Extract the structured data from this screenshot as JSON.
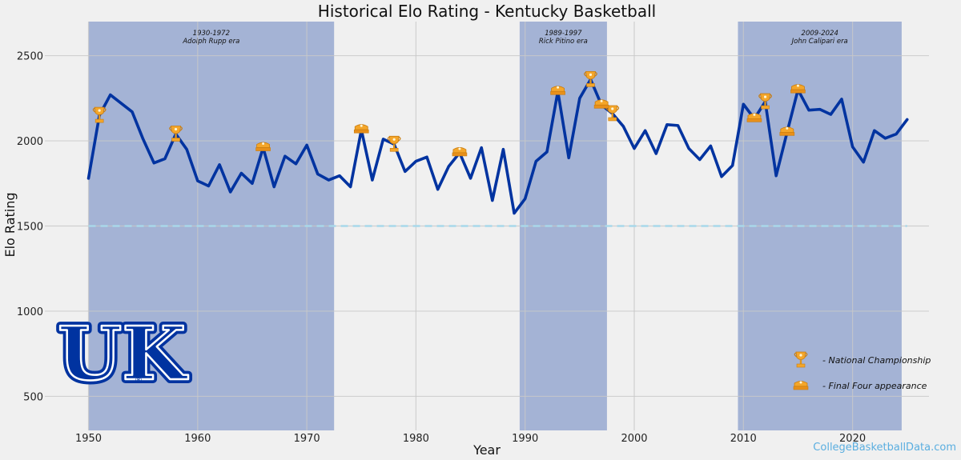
{
  "chart_data": {
    "type": "line",
    "title": "Historical Elo Rating - Kentucky Basketball",
    "xlabel": "Year",
    "ylabel": "Elo Rating",
    "xlim": [
      1946,
      2027
    ],
    "ylim": [
      300,
      2700
    ],
    "x_ticks": [
      1950,
      1960,
      1970,
      1980,
      1990,
      2000,
      2010,
      2020
    ],
    "y_ticks": [
      500,
      1000,
      1500,
      2000,
      2500
    ],
    "grid": true,
    "reference_line": {
      "value": 1500,
      "style": "dashed",
      "color": "#a8d8ea"
    },
    "series": [
      {
        "color": "#0033a0",
        "x": [
          1950,
          1951,
          1952,
          1953,
          1954,
          1955,
          1956,
          1957,
          1958,
          1959,
          1960,
          1961,
          1962,
          1963,
          1964,
          1965,
          1966,
          1967,
          1968,
          1969,
          1970,
          1971,
          1972,
          1973,
          1974,
          1975,
          1976,
          1977,
          1978,
          1979,
          1980,
          1981,
          1982,
          1983,
          1984,
          1985,
          1986,
          1987,
          1988,
          1989,
          1990,
          1991,
          1992,
          1993,
          1994,
          1995,
          1996,
          1997,
          1998,
          1999,
          2000,
          2001,
          2002,
          2003,
          2004,
          2005,
          2006,
          2007,
          2008,
          2009,
          2010,
          2011,
          2012,
          2013,
          2014,
          2015,
          2016,
          2017,
          2018,
          2019,
          2020,
          2021,
          2022,
          2023,
          2024,
          2025
        ],
        "y": [
          1780,
          2150,
          2270,
          2220,
          2170,
          2010,
          1870,
          1895,
          2040,
          1950,
          1765,
          1735,
          1860,
          1700,
          1810,
          1750,
          1960,
          1730,
          1910,
          1865,
          1975,
          1805,
          1770,
          1795,
          1730,
          2065,
          1770,
          2010,
          1980,
          1820,
          1880,
          1905,
          1715,
          1850,
          1930,
          1780,
          1960,
          1650,
          1950,
          1575,
          1660,
          1880,
          1935,
          2290,
          1900,
          2250,
          2360,
          2210,
          2160,
          2085,
          1955,
          2060,
          1925,
          2095,
          2090,
          1955,
          1890,
          1970,
          1790,
          1855,
          2215,
          2130,
          2230,
          1795,
          2050,
          2300,
          2180,
          2185,
          2155,
          2245,
          1965,
          1875,
          2060,
          2015,
          2040,
          2125
        ]
      }
    ],
    "shaded_eras": [
      {
        "start": 1950,
        "end": 1972.5,
        "years": "1930-1972",
        "label": "Adolph Rupp era"
      },
      {
        "start": 1989.5,
        "end": 1997.5,
        "years": "1989-1997",
        "label": "Rick Pitino era"
      },
      {
        "start": 2009.5,
        "end": 2024.5,
        "years": "2009-2024",
        "label": "John Calipari era"
      }
    ],
    "era_color": "#2850a8",
    "championships": [
      {
        "year": 1951,
        "elo": 2150
      },
      {
        "year": 1958,
        "elo": 2040
      },
      {
        "year": 1978,
        "elo": 1980
      },
      {
        "year": 1996,
        "elo": 2360
      },
      {
        "year": 1998,
        "elo": 2160
      },
      {
        "year": 2012,
        "elo": 2230
      }
    ],
    "final_fours": [
      {
        "year": 1966,
        "elo": 1960
      },
      {
        "year": 1975,
        "elo": 2065
      },
      {
        "year": 1984,
        "elo": 1930
      },
      {
        "year": 1993,
        "elo": 2290
      },
      {
        "year": 1997,
        "elo": 2210
      },
      {
        "year": 2011,
        "elo": 2130
      },
      {
        "year": 2014,
        "elo": 2050
      },
      {
        "year": 2015,
        "elo": 2300
      }
    ],
    "legend": {
      "placement": "bottom-right",
      "championship_label": "- National Championship",
      "final_four_label": "- Final Four appearance"
    }
  },
  "logo": {
    "text": "UK",
    "color": "#0033a0"
  },
  "source": {
    "text": "CollegeBasketballData.com",
    "color": "#5aaee0"
  }
}
